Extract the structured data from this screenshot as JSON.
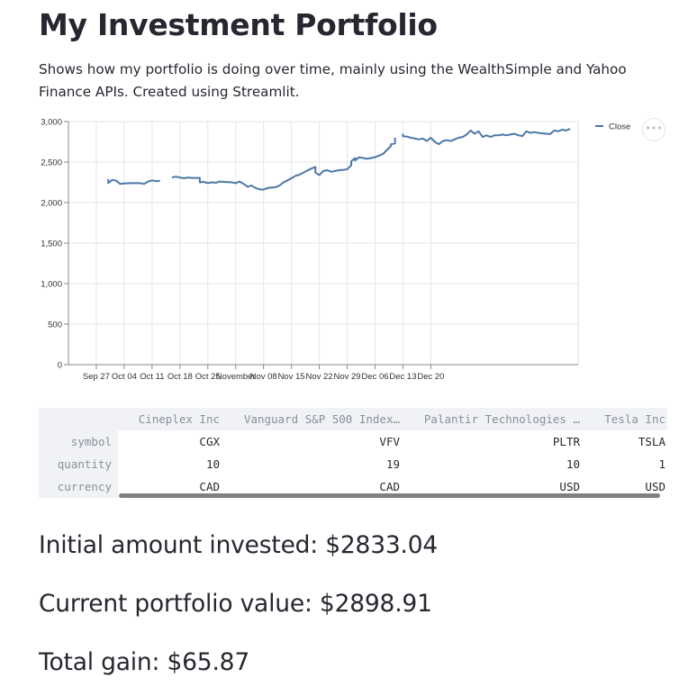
{
  "page": {
    "title": "My Investment Portfolio",
    "description": "Shows how my portfolio is doing over time, mainly using the WealthSimple and Yahoo Finance APIs. Created using Streamlit."
  },
  "chart_menu_label": "•••",
  "chart_data": {
    "type": "line",
    "legend": "top-right",
    "grid": true,
    "series": [
      {
        "name": "Close",
        "color": "#4c78a8",
        "segments": [
          [
            [
              "2021-09-30",
              2290
            ],
            [
              "2021-09-30",
              2240
            ],
            [
              "2021-10-01",
              2280
            ],
            [
              "2021-10-02",
              2270
            ],
            [
              "2021-10-03",
              2230
            ],
            [
              "2021-10-04",
              2235
            ],
            [
              "2021-10-06",
              2240
            ],
            [
              "2021-10-08",
              2240
            ],
            [
              "2021-10-09",
              2230
            ],
            [
              "2021-10-10",
              2260
            ],
            [
              "2021-10-11",
              2275
            ],
            [
              "2021-10-12",
              2265
            ],
            [
              "2021-10-13",
              2270
            ]
          ],
          [
            [
              "2021-10-16",
              2310
            ],
            [
              "2021-10-17",
              2320
            ],
            [
              "2021-10-19",
              2300
            ],
            [
              "2021-10-20",
              2310
            ],
            [
              "2021-10-21",
              2305
            ],
            [
              "2021-10-23",
              2305
            ],
            [
              "2021-10-23",
              2250
            ],
            [
              "2021-10-24",
              2255
            ],
            [
              "2021-10-25",
              2240
            ],
            [
              "2021-10-26",
              2250
            ],
            [
              "2021-10-27",
              2245
            ],
            [
              "2021-10-28",
              2260
            ],
            [
              "2021-10-29",
              2255
            ],
            [
              "2021-10-31",
              2250
            ],
            [
              "2021-11-01",
              2240
            ],
            [
              "2021-11-02",
              2260
            ],
            [
              "2021-11-03",
              2230
            ],
            [
              "2021-11-04",
              2195
            ],
            [
              "2021-11-05",
              2210
            ],
            [
              "2021-11-06",
              2180
            ],
            [
              "2021-11-07",
              2165
            ],
            [
              "2021-11-08",
              2160
            ],
            [
              "2021-11-09",
              2180
            ],
            [
              "2021-11-11",
              2190
            ],
            [
              "2021-11-12",
              2210
            ],
            [
              "2021-11-13",
              2250
            ],
            [
              "2021-11-14",
              2275
            ],
            [
              "2021-11-15",
              2300
            ],
            [
              "2021-11-16",
              2330
            ],
            [
              "2021-11-17",
              2345
            ],
            [
              "2021-11-18",
              2370
            ],
            [
              "2021-11-19",
              2395
            ],
            [
              "2021-11-20",
              2420
            ],
            [
              "2021-11-21",
              2440
            ],
            [
              "2021-11-21",
              2370
            ],
            [
              "2021-11-22",
              2340
            ],
            [
              "2021-11-23",
              2390
            ],
            [
              "2021-11-24",
              2400
            ],
            [
              "2021-11-25",
              2380
            ],
            [
              "2021-11-26",
              2390
            ],
            [
              "2021-11-27",
              2400
            ],
            [
              "2021-11-28",
              2405
            ],
            [
              "2021-11-29",
              2410
            ],
            [
              "2021-11-30",
              2460
            ],
            [
              "2021-11-30",
              2510
            ],
            [
              "2021-12-01",
              2550
            ],
            [
              "2021-12-01",
              2520
            ],
            [
              "2021-12-02",
              2560
            ],
            [
              "2021-12-03",
              2550
            ],
            [
              "2021-12-04",
              2540
            ],
            [
              "2021-12-05",
              2550
            ],
            [
              "2021-12-06",
              2560
            ],
            [
              "2021-12-07",
              2580
            ],
            [
              "2021-12-08",
              2600
            ],
            [
              "2021-12-09",
              2650
            ],
            [
              "2021-12-10",
              2700
            ],
            [
              "2021-12-10",
              2720
            ],
            [
              "2021-12-11",
              2730
            ],
            [
              "2021-12-11",
              2800
            ]
          ],
          [
            [
              "2021-12-13",
              2850
            ],
            [
              "2021-12-13",
              2820
            ],
            [
              "2021-12-14",
              2815
            ],
            [
              "2021-12-15",
              2800
            ],
            [
              "2021-12-16",
              2790
            ],
            [
              "2021-12-17",
              2780
            ],
            [
              "2021-12-18",
              2790
            ],
            [
              "2021-12-19",
              2760
            ],
            [
              "2021-12-20",
              2800
            ],
            [
              "2021-12-21",
              2750
            ],
            [
              "2021-12-22",
              2720
            ],
            [
              "2021-12-23",
              2760
            ],
            [
              "2021-12-24",
              2770
            ],
            [
              "2021-12-25",
              2760
            ],
            [
              "2021-12-26",
              2780
            ],
            [
              "2021-12-27",
              2800
            ],
            [
              "2021-12-28",
              2810
            ],
            [
              "2021-12-29",
              2840
            ],
            [
              "2021-12-30",
              2890
            ],
            [
              "2021-12-31",
              2850
            ],
            [
              "2022-01-01",
              2880
            ],
            [
              "2022-01-02",
              2810
            ],
            [
              "2022-01-03",
              2830
            ],
            [
              "2022-01-04",
              2810
            ],
            [
              "2022-01-05",
              2830
            ],
            [
              "2022-01-06",
              2830
            ],
            [
              "2022-01-07",
              2840
            ],
            [
              "2022-01-08",
              2830
            ],
            [
              "2022-01-09",
              2840
            ],
            [
              "2022-01-10",
              2850
            ],
            [
              "2022-01-11",
              2830
            ],
            [
              "2022-01-12",
              2820
            ],
            [
              "2022-01-13",
              2880
            ],
            [
              "2022-01-14",
              2860
            ],
            [
              "2022-01-15",
              2870
            ],
            [
              "2022-01-16",
              2860
            ],
            [
              "2022-01-17",
              2855
            ],
            [
              "2022-01-18",
              2850
            ],
            [
              "2022-01-19",
              2845
            ],
            [
              "2022-01-20",
              2890
            ],
            [
              "2022-01-21",
              2880
            ],
            [
              "2022-01-22",
              2900
            ],
            [
              "2022-01-23",
              2890
            ],
            [
              "2022-01-24",
              2910
            ]
          ]
        ]
      }
    ],
    "x_ticks": [
      "Sep 27",
      "Oct 04",
      "Oct 11",
      "Oct 18",
      "Oct 25",
      "November",
      "Nov 08",
      "Nov 15",
      "Nov 22",
      "Nov 29",
      "Dec 06",
      "Dec 13",
      "Dec 20"
    ],
    "ylim": [
      0,
      3000
    ],
    "y_ticks": [
      "0",
      "500",
      "1,000",
      "1,500",
      "2,000",
      "2,500",
      "3,000"
    ]
  },
  "table": {
    "columns": [
      "Cineplex Inc",
      "Vanguard S&P 500 Index…",
      "Palantir Technologies …",
      "Tesla Inc"
    ],
    "rows": [
      {
        "label": "symbol",
        "values": [
          "CGX",
          "VFV",
          "PLTR",
          "TSLA"
        ]
      },
      {
        "label": "quantity",
        "values": [
          "10",
          "19",
          "10",
          "1"
        ]
      },
      {
        "label": "currency",
        "values": [
          "CAD",
          "CAD",
          "USD",
          "USD"
        ]
      }
    ]
  },
  "stats": {
    "initial": "Initial amount invested: $2833.04",
    "current": "Current portfolio value: $2898.91",
    "gain": "Total gain: $65.87"
  }
}
